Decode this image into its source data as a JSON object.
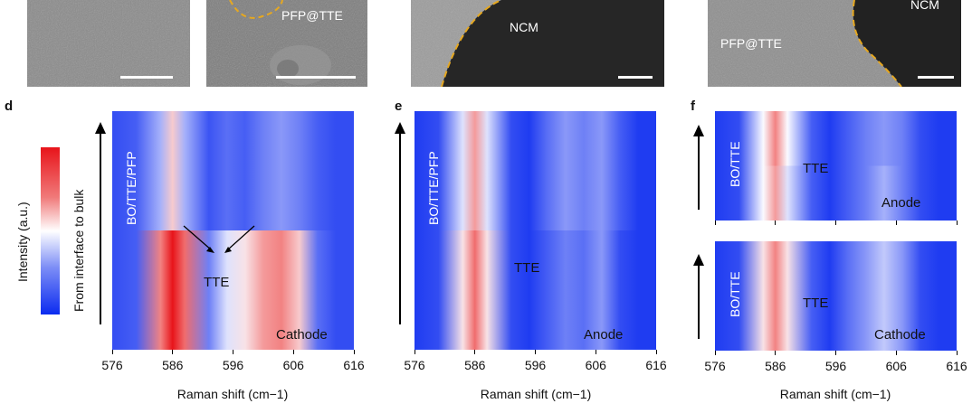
{
  "images": {
    "tile2_label": "PFP@TTE",
    "tile3_label": "NCM",
    "tile4_label_a": "PFP@TTE",
    "tile4_label_b": "NCM"
  },
  "colorbar": {
    "label": "Intensity (a.u.)"
  },
  "axis_annotation": "From interface to bulk",
  "chart_data": [
    {
      "type": "heatmap",
      "panel": "d",
      "x": [
        576,
        586,
        596,
        606,
        616
      ],
      "xlabel": "Raman shift (cm−1)",
      "xlim": [
        576,
        616
      ],
      "profile_x": [
        576,
        580,
        584,
        586,
        588,
        592,
        595,
        598,
        601,
        604,
        607,
        610,
        613,
        616
      ],
      "rows": [
        {
          "label": "top",
          "values": [
            0.1,
            0.15,
            0.35,
            0.6,
            0.35,
            0.12,
            0.2,
            0.15,
            0.25,
            0.3,
            0.25,
            0.15,
            0.1,
            0.1
          ]
        },
        {
          "label": "bottom",
          "values": [
            0.1,
            0.15,
            0.75,
            1.0,
            0.8,
            0.25,
            0.45,
            0.55,
            0.7,
            0.75,
            0.6,
            0.2,
            0.1,
            0.1
          ]
        }
      ],
      "labels": {
        "left": "BO/TTE/PFP",
        "middle": "TTE",
        "bottom_right": "Cathode"
      }
    },
    {
      "type": "heatmap",
      "panel": "e",
      "x": [
        576,
        586,
        596,
        606,
        616
      ],
      "xlabel": "Raman shift (cm−1)",
      "xlim": [
        576,
        616
      ],
      "profile_x": [
        576,
        580,
        584,
        586,
        588,
        592,
        595,
        598,
        601,
        604,
        607,
        610,
        613,
        616
      ],
      "rows": [
        {
          "label": "top",
          "values": [
            0.05,
            0.1,
            0.45,
            0.7,
            0.45,
            0.1,
            0.05,
            0.2,
            0.3,
            0.25,
            0.3,
            0.15,
            0.05,
            0.05
          ]
        },
        {
          "label": "bottom",
          "values": [
            0.05,
            0.1,
            0.55,
            0.8,
            0.55,
            0.1,
            0.05,
            0.15,
            0.25,
            0.2,
            0.3,
            0.1,
            0.05,
            0.05
          ]
        }
      ],
      "labels": {
        "left": "BO/TTE/PFP",
        "middle": "TTE",
        "bottom_right": "Anode"
      }
    },
    {
      "type": "heatmap",
      "panel": "f",
      "subpanel": "top",
      "x": [
        576,
        586,
        596,
        606,
        616
      ],
      "xlabel": "",
      "xlim": [
        576,
        616
      ],
      "profile_x": [
        576,
        580,
        584,
        586,
        588,
        592,
        595,
        598,
        601,
        604,
        607,
        610,
        613,
        616
      ],
      "rows": [
        {
          "label": "top",
          "values": [
            0.05,
            0.1,
            0.5,
            0.75,
            0.5,
            0.15,
            0.05,
            0.15,
            0.25,
            0.3,
            0.25,
            0.1,
            0.05,
            0.05
          ]
        },
        {
          "label": "bottom",
          "values": [
            0.05,
            0.1,
            0.5,
            0.7,
            0.45,
            0.15,
            0.05,
            0.15,
            0.25,
            0.35,
            0.25,
            0.1,
            0.05,
            0.05
          ]
        }
      ],
      "labels": {
        "left": "BO/TTE",
        "middle": "TTE",
        "bottom_right": "Anode"
      }
    },
    {
      "type": "heatmap",
      "panel": "f",
      "subpanel": "bottom",
      "x": [
        576,
        586,
        596,
        606,
        616
      ],
      "xlabel": "Raman shift (cm−1)",
      "xlim": [
        576,
        616
      ],
      "profile_x": [
        576,
        580,
        584,
        586,
        588,
        592,
        595,
        598,
        601,
        604,
        607,
        610,
        613,
        616
      ],
      "rows": [
        {
          "label": "top",
          "values": [
            0.05,
            0.1,
            0.55,
            0.75,
            0.55,
            0.15,
            0.05,
            0.2,
            0.3,
            0.4,
            0.3,
            0.1,
            0.05,
            0.05
          ]
        },
        {
          "label": "bottom",
          "values": [
            0.05,
            0.1,
            0.55,
            0.75,
            0.55,
            0.15,
            0.05,
            0.2,
            0.3,
            0.4,
            0.3,
            0.1,
            0.05,
            0.05
          ]
        }
      ],
      "labels": {
        "left": "BO/TTE",
        "middle": "TTE",
        "bottom_right": "Cathode"
      }
    }
  ]
}
